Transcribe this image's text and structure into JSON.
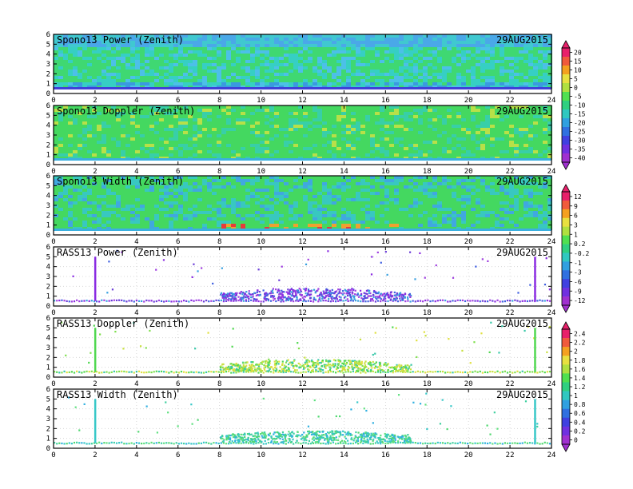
{
  "date_label": "29AUG2015",
  "chart_data": [
    {
      "type": "heatmap",
      "title": "Spono13 Power (Zenith)",
      "date": "29AUG2015",
      "x_ticks": [
        0,
        2,
        4,
        6,
        8,
        10,
        12,
        14,
        16,
        18,
        20,
        22,
        24
      ],
      "y_ticks": [
        0,
        1,
        2,
        3,
        4,
        5,
        6
      ],
      "xlim": [
        0,
        24
      ],
      "ylim": [
        0,
        6
      ],
      "colorbar": "power",
      "dominant_color": "green/cyan with blue near-surface band"
    },
    {
      "type": "heatmap",
      "title": "Spono13 Doppler (Zenith)",
      "date": "29AUG2015",
      "x_ticks": [
        0,
        2,
        4,
        6,
        8,
        10,
        12,
        14,
        16,
        18,
        20,
        22,
        24
      ],
      "y_ticks": [
        0,
        1,
        2,
        3,
        4,
        5,
        6
      ],
      "xlim": [
        0,
        24
      ],
      "ylim": [
        0,
        6
      ],
      "colorbar": "power",
      "dominant_color": "green"
    },
    {
      "type": "heatmap",
      "title": "Spono13 Width (Zenith)",
      "date": "29AUG2015",
      "x_ticks": [
        0,
        2,
        4,
        6,
        8,
        10,
        12,
        14,
        16,
        18,
        20,
        22,
        24
      ],
      "y_ticks": [
        0,
        1,
        2,
        3,
        4,
        5,
        6
      ],
      "xlim": [
        0,
        24
      ],
      "ylim": [
        0,
        6
      ],
      "colorbar": "width",
      "dominant_color": "green with red/orange near 1 km around 8-16 h"
    },
    {
      "type": "scatter",
      "title": "RASS13 Power (Zenith)",
      "date": "29AUG2015",
      "x_ticks": [
        0,
        2,
        4,
        6,
        8,
        10,
        12,
        14,
        16,
        18,
        20,
        22,
        24
      ],
      "y_ticks": [
        0,
        1,
        2,
        3,
        4,
        5,
        6
      ],
      "xlim": [
        0,
        24
      ],
      "ylim": [
        0,
        6
      ],
      "colorbar": "width",
      "dominant_color": "purple/violet"
    },
    {
      "type": "scatter",
      "title": "RASS13 Doppler (Zenith)",
      "date": "29AUG2015",
      "x_ticks": [
        0,
        2,
        4,
        6,
        8,
        10,
        12,
        14,
        16,
        18,
        20,
        22,
        24
      ],
      "y_ticks": [
        0,
        1,
        2,
        3,
        4,
        5,
        6
      ],
      "xlim": [
        0,
        24
      ],
      "ylim": [
        0,
        6
      ],
      "colorbar": "rassd",
      "dominant_color": "green/yellow"
    },
    {
      "type": "scatter",
      "title": "RASS13 Width (Zenith)",
      "date": "29AUG2015",
      "x_ticks": [
        0,
        2,
        4,
        6,
        8,
        10,
        12,
        14,
        16,
        18,
        20,
        22,
        24
      ],
      "y_ticks": [
        0,
        1,
        2,
        3,
        4,
        5,
        6
      ],
      "xlim": [
        0,
        24
      ],
      "ylim": [
        0,
        6
      ],
      "colorbar": "rassd",
      "dominant_color": "cyan/green"
    }
  ],
  "colorbars": {
    "power": {
      "labels": [
        "20",
        "15",
        "10",
        "5",
        "0",
        "-5",
        "-10",
        "-15",
        "-20",
        "-25",
        "-30",
        "-35",
        "-40"
      ],
      "colors": [
        "#e8206a",
        "#f05a3c",
        "#f4a020",
        "#e8e040",
        "#b0e040",
        "#50e050",
        "#30d080",
        "#30c8c0",
        "#30a0e0",
        "#3070e0",
        "#4040e0",
        "#7030e0",
        "#a030d0"
      ]
    },
    "width": {
      "labels": [
        "12",
        "9",
        "6",
        "3",
        "1",
        "0.2",
        "-0.2",
        "-1",
        "-3",
        "-6",
        "-9",
        "-12"
      ],
      "colors": [
        "#e8206a",
        "#f05a3c",
        "#f4a020",
        "#e8e040",
        "#b0e040",
        "#50e050",
        "#30d080",
        "#30c8c0",
        "#30a0e0",
        "#3070e0",
        "#4040e0",
        "#7030e0",
        "#a030d0"
      ]
    },
    "rassd": {
      "labels": [
        "2.4",
        "2.2",
        "2",
        "1.8",
        "1.6",
        "1.4",
        "1.2",
        "1",
        "0.8",
        "0.6",
        "0.4",
        "0.2",
        "0"
      ],
      "colors": [
        "#e8206a",
        "#f05a3c",
        "#f4a020",
        "#e8e040",
        "#b0e040",
        "#50e050",
        "#30d080",
        "#30c8c0",
        "#30a0e0",
        "#3070e0",
        "#4040e0",
        "#7030e0",
        "#a030d0"
      ]
    }
  }
}
